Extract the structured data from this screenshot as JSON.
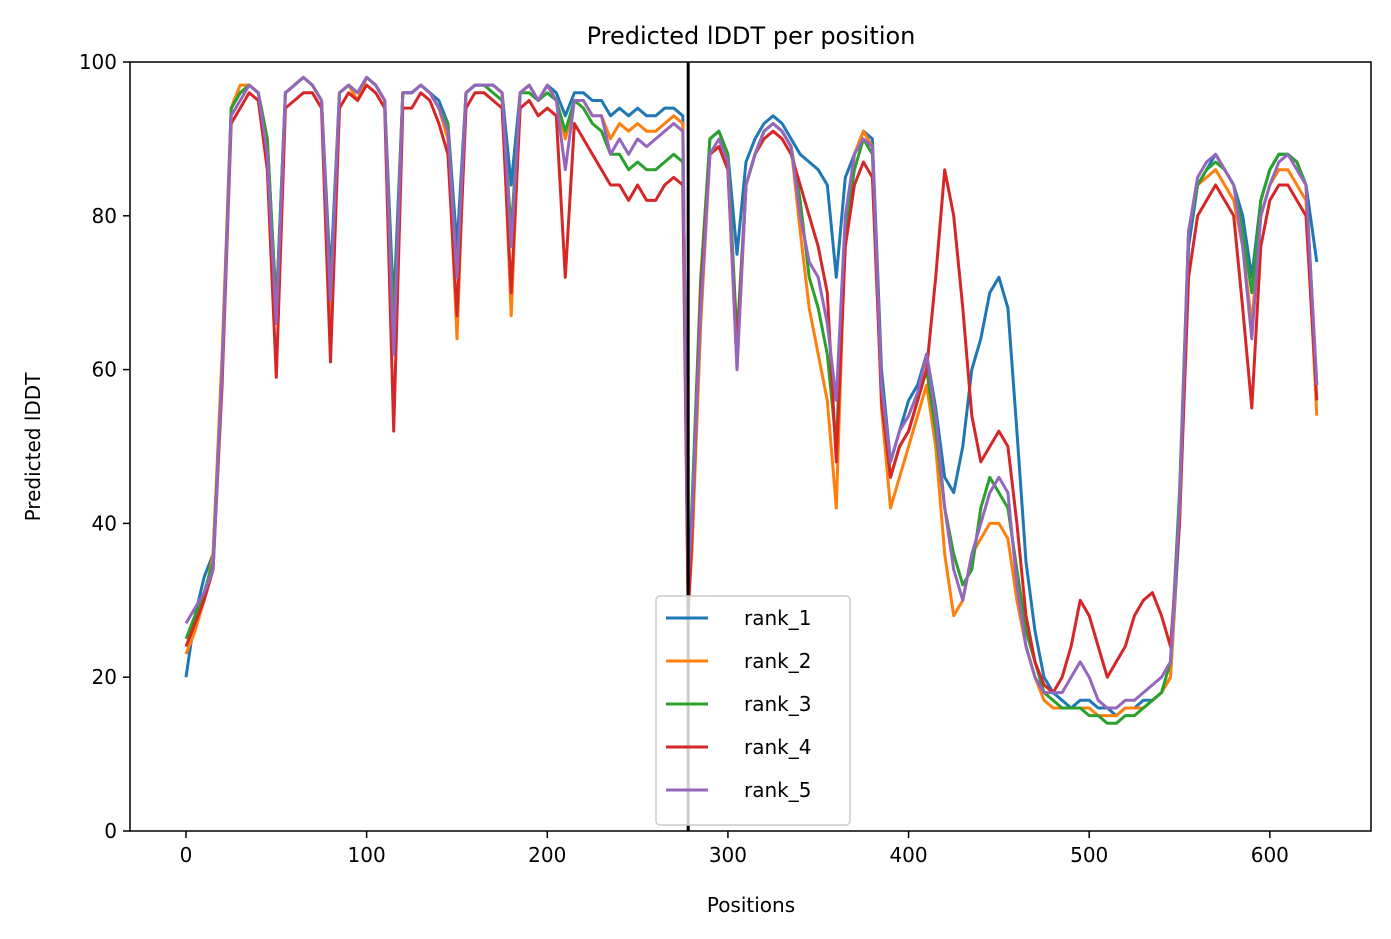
{
  "chart_data": {
    "type": "line",
    "title": "Predicted lDDT per position",
    "xlabel": "Positions",
    "ylabel": "Predicted lDDT",
    "xlim": [
      -31,
      656
    ],
    "ylim": [
      0,
      100
    ],
    "xticks": [
      0,
      100,
      200,
      300,
      400,
      500,
      600
    ],
    "yticks": [
      0,
      20,
      40,
      60,
      80,
      100
    ],
    "grid": false,
    "legend_position": "lower center",
    "vertical_line_x": 278,
    "series": [
      {
        "name": "rank_1",
        "color": "#1f77b4",
        "x": [
          0,
          5,
          10,
          15,
          20,
          25,
          30,
          35,
          40,
          45,
          50,
          55,
          60,
          65,
          70,
          75,
          80,
          85,
          90,
          95,
          100,
          105,
          110,
          115,
          120,
          125,
          130,
          135,
          140,
          145,
          150,
          155,
          160,
          165,
          170,
          175,
          180,
          185,
          190,
          195,
          200,
          205,
          210,
          215,
          220,
          225,
          230,
          235,
          240,
          245,
          250,
          255,
          260,
          265,
          270,
          275,
          278,
          280,
          285,
          290,
          295,
          300,
          305,
          310,
          315,
          320,
          325,
          330,
          335,
          340,
          345,
          350,
          355,
          360,
          365,
          370,
          375,
          380,
          385,
          390,
          395,
          400,
          405,
          410,
          415,
          420,
          425,
          430,
          435,
          440,
          445,
          450,
          455,
          460,
          465,
          470,
          475,
          480,
          485,
          490,
          495,
          500,
          505,
          510,
          515,
          520,
          525,
          530,
          535,
          540,
          545,
          550,
          555,
          560,
          565,
          570,
          575,
          580,
          585,
          590,
          595,
          600,
          605,
          610,
          615,
          620,
          626
        ],
        "values": [
          20,
          28,
          33,
          36,
          60,
          94,
          96,
          97,
          96,
          90,
          68,
          96,
          97,
          98,
          97,
          95,
          72,
          96,
          97,
          96,
          98,
          97,
          95,
          68,
          96,
          96,
          97,
          96,
          95,
          92,
          76,
          96,
          97,
          97,
          97,
          96,
          84,
          96,
          97,
          95,
          97,
          96,
          93,
          96,
          96,
          95,
          95,
          93,
          94,
          93,
          94,
          93,
          93,
          94,
          94,
          93,
          30,
          40,
          70,
          90,
          91,
          88,
          75,
          87,
          90,
          92,
          93,
          92,
          90,
          88,
          87,
          86,
          84,
          72,
          85,
          88,
          91,
          90,
          60,
          48,
          52,
          56,
          58,
          62,
          55,
          46,
          44,
          50,
          60,
          64,
          70,
          72,
          68,
          52,
          35,
          26,
          20,
          18,
          17,
          16,
          17,
          17,
          16,
          16,
          15,
          16,
          16,
          17,
          17,
          18,
          20,
          40,
          76,
          84,
          86,
          88,
          86,
          84,
          80,
          72,
          82,
          86,
          88,
          88,
          87,
          84,
          74
        ],
        "draw_width": 3
      },
      {
        "name": "rank_2",
        "color": "#ff7f0e",
        "x": [
          0,
          5,
          10,
          15,
          20,
          25,
          30,
          35,
          40,
          45,
          50,
          55,
          60,
          65,
          70,
          75,
          80,
          85,
          90,
          95,
          100,
          105,
          110,
          115,
          120,
          125,
          130,
          135,
          140,
          145,
          150,
          155,
          160,
          165,
          170,
          175,
          180,
          185,
          190,
          195,
          200,
          205,
          210,
          215,
          220,
          225,
          230,
          235,
          240,
          245,
          250,
          255,
          260,
          265,
          270,
          275,
          278,
          280,
          285,
          290,
          295,
          300,
          305,
          310,
          315,
          320,
          325,
          330,
          335,
          340,
          345,
          350,
          355,
          360,
          365,
          370,
          375,
          380,
          385,
          390,
          395,
          400,
          405,
          410,
          415,
          420,
          425,
          430,
          435,
          440,
          445,
          450,
          455,
          460,
          465,
          470,
          475,
          480,
          485,
          490,
          495,
          500,
          505,
          510,
          515,
          520,
          525,
          530,
          535,
          540,
          545,
          550,
          555,
          560,
          565,
          570,
          575,
          580,
          585,
          590,
          595,
          600,
          605,
          610,
          615,
          620,
          626
        ],
        "values": [
          23,
          26,
          30,
          36,
          62,
          94,
          97,
          97,
          96,
          90,
          66,
          96,
          97,
          98,
          97,
          95,
          66,
          96,
          97,
          95,
          98,
          97,
          95,
          63,
          96,
          96,
          97,
          96,
          94,
          90,
          64,
          96,
          97,
          97,
          97,
          96,
          67,
          96,
          97,
          95,
          97,
          95,
          90,
          95,
          95,
          93,
          93,
          90,
          92,
          91,
          92,
          91,
          91,
          92,
          93,
          92,
          29,
          36,
          66,
          88,
          89,
          86,
          60,
          84,
          88,
          91,
          92,
          91,
          89,
          78,
          68,
          62,
          56,
          42,
          78,
          88,
          91,
          89,
          55,
          42,
          46,
          50,
          54,
          58,
          50,
          36,
          28,
          30,
          36,
          38,
          40,
          40,
          38,
          30,
          24,
          20,
          17,
          16,
          16,
          16,
          16,
          16,
          15,
          15,
          15,
          16,
          16,
          16,
          17,
          18,
          20,
          42,
          78,
          84,
          85,
          86,
          84,
          82,
          76,
          66,
          80,
          84,
          86,
          86,
          84,
          82,
          54
        ],
        "draw_width": 3
      },
      {
        "name": "rank_3",
        "color": "#2ca02c",
        "x": [
          0,
          5,
          10,
          15,
          20,
          25,
          30,
          35,
          40,
          45,
          50,
          55,
          60,
          65,
          70,
          75,
          80,
          85,
          90,
          95,
          100,
          105,
          110,
          115,
          120,
          125,
          130,
          135,
          140,
          145,
          150,
          155,
          160,
          165,
          170,
          175,
          180,
          185,
          190,
          195,
          200,
          205,
          210,
          215,
          220,
          225,
          230,
          235,
          240,
          245,
          250,
          255,
          260,
          265,
          270,
          275,
          278,
          280,
          285,
          290,
          295,
          300,
          305,
          310,
          315,
          320,
          325,
          330,
          335,
          340,
          345,
          350,
          355,
          360,
          365,
          370,
          375,
          380,
          385,
          390,
          395,
          400,
          405,
          410,
          415,
          420,
          425,
          430,
          435,
          440,
          445,
          450,
          455,
          460,
          465,
          470,
          475,
          480,
          485,
          490,
          495,
          500,
          505,
          510,
          515,
          520,
          525,
          530,
          535,
          540,
          545,
          550,
          555,
          560,
          565,
          570,
          575,
          580,
          585,
          590,
          595,
          600,
          605,
          610,
          615,
          620,
          626
        ],
        "values": [
          25,
          28,
          31,
          35,
          60,
          94,
          96,
          97,
          96,
          90,
          68,
          96,
          97,
          98,
          97,
          95,
          70,
          96,
          97,
          96,
          98,
          97,
          95,
          65,
          96,
          96,
          97,
          96,
          94,
          92,
          72,
          96,
          97,
          97,
          96,
          95,
          78,
          96,
          96,
          95,
          96,
          95,
          91,
          95,
          94,
          92,
          91,
          88,
          88,
          86,
          87,
          86,
          86,
          87,
          88,
          87,
          29,
          42,
          72,
          90,
          91,
          88,
          64,
          84,
          88,
          91,
          92,
          91,
          89,
          82,
          72,
          68,
          62,
          50,
          78,
          86,
          90,
          88,
          58,
          46,
          50,
          52,
          56,
          60,
          52,
          42,
          36,
          32,
          34,
          42,
          46,
          44,
          42,
          34,
          26,
          22,
          18,
          17,
          16,
          16,
          16,
          15,
          15,
          14,
          14,
          15,
          15,
          16,
          17,
          18,
          22,
          44,
          78,
          84,
          86,
          87,
          86,
          84,
          78,
          70,
          82,
          86,
          88,
          88,
          87,
          84,
          58
        ],
        "draw_width": 3
      },
      {
        "name": "rank_4",
        "color": "#d62728",
        "x": [
          0,
          5,
          10,
          15,
          20,
          25,
          30,
          35,
          40,
          45,
          50,
          55,
          60,
          65,
          70,
          75,
          80,
          85,
          90,
          95,
          100,
          105,
          110,
          115,
          120,
          125,
          130,
          135,
          140,
          145,
          150,
          155,
          160,
          165,
          170,
          175,
          180,
          185,
          190,
          195,
          200,
          205,
          210,
          215,
          220,
          225,
          230,
          235,
          240,
          245,
          250,
          255,
          260,
          265,
          270,
          275,
          278,
          280,
          285,
          290,
          295,
          300,
          305,
          310,
          315,
          320,
          325,
          330,
          335,
          340,
          345,
          350,
          355,
          360,
          365,
          370,
          375,
          380,
          385,
          390,
          395,
          400,
          405,
          410,
          415,
          420,
          425,
          430,
          435,
          440,
          445,
          450,
          455,
          460,
          465,
          470,
          475,
          480,
          485,
          490,
          495,
          500,
          505,
          510,
          515,
          520,
          525,
          530,
          535,
          540,
          545,
          550,
          555,
          560,
          565,
          570,
          575,
          580,
          585,
          590,
          595,
          600,
          605,
          610,
          615,
          620,
          626
        ],
        "values": [
          24,
          27,
          30,
          34,
          58,
          92,
          94,
          96,
          95,
          86,
          59,
          94,
          95,
          96,
          96,
          94,
          61,
          94,
          96,
          95,
          97,
          96,
          94,
          52,
          94,
          94,
          96,
          95,
          92,
          88,
          67,
          94,
          96,
          96,
          95,
          94,
          70,
          94,
          95,
          93,
          94,
          93,
          72,
          92,
          90,
          88,
          86,
          84,
          84,
          82,
          84,
          82,
          82,
          84,
          85,
          84,
          28,
          38,
          70,
          88,
          89,
          86,
          62,
          84,
          88,
          90,
          91,
          90,
          88,
          84,
          80,
          76,
          70,
          48,
          76,
          84,
          87,
          85,
          56,
          46,
          50,
          52,
          56,
          60,
          72,
          86,
          80,
          68,
          54,
          48,
          50,
          52,
          50,
          40,
          28,
          22,
          19,
          18,
          20,
          24,
          30,
          28,
          24,
          20,
          22,
          24,
          28,
          30,
          31,
          28,
          24,
          40,
          72,
          80,
          82,
          84,
          82,
          80,
          68,
          55,
          76,
          82,
          84,
          84,
          82,
          80,
          56
        ],
        "draw_width": 3
      },
      {
        "name": "rank_5",
        "color": "#9467bd",
        "x": [
          0,
          5,
          10,
          15,
          20,
          25,
          30,
          35,
          40,
          45,
          50,
          55,
          60,
          65,
          70,
          75,
          80,
          85,
          90,
          95,
          100,
          105,
          110,
          115,
          120,
          125,
          130,
          135,
          140,
          145,
          150,
          155,
          160,
          165,
          170,
          175,
          180,
          185,
          190,
          195,
          200,
          205,
          210,
          215,
          220,
          225,
          230,
          235,
          240,
          245,
          250,
          255,
          260,
          265,
          270,
          275,
          278,
          280,
          285,
          290,
          295,
          300,
          305,
          310,
          315,
          320,
          325,
          330,
          335,
          340,
          345,
          350,
          355,
          360,
          365,
          370,
          375,
          380,
          385,
          390,
          395,
          400,
          405,
          410,
          415,
          420,
          425,
          430,
          435,
          440,
          445,
          450,
          455,
          460,
          465,
          470,
          475,
          480,
          485,
          490,
          495,
          500,
          505,
          510,
          515,
          520,
          525,
          530,
          535,
          540,
          545,
          550,
          555,
          560,
          565,
          570,
          575,
          580,
          585,
          590,
          595,
          600,
          605,
          610,
          615,
          620,
          626
        ],
        "values": [
          27,
          29,
          31,
          34,
          60,
          93,
          95,
          97,
          96,
          88,
          66,
          96,
          97,
          98,
          97,
          95,
          69,
          96,
          97,
          96,
          98,
          97,
          95,
          62,
          96,
          96,
          97,
          96,
          94,
          91,
          72,
          96,
          97,
          97,
          97,
          96,
          76,
          96,
          97,
          95,
          97,
          95,
          86,
          95,
          95,
          93,
          93,
          88,
          90,
          88,
          90,
          89,
          90,
          91,
          92,
          91,
          33,
          40,
          68,
          88,
          90,
          87,
          60,
          84,
          88,
          91,
          92,
          91,
          89,
          80,
          74,
          72,
          66,
          56,
          80,
          88,
          90,
          89,
          58,
          48,
          52,
          54,
          57,
          62,
          54,
          42,
          34,
          30,
          36,
          40,
          44,
          46,
          44,
          32,
          24,
          20,
          18,
          18,
          18,
          20,
          22,
          20,
          17,
          16,
          16,
          17,
          17,
          18,
          19,
          20,
          22,
          42,
          78,
          85,
          87,
          88,
          86,
          84,
          76,
          64,
          80,
          84,
          87,
          88,
          86,
          84,
          58
        ],
        "draw_width": 3
      }
    ]
  }
}
